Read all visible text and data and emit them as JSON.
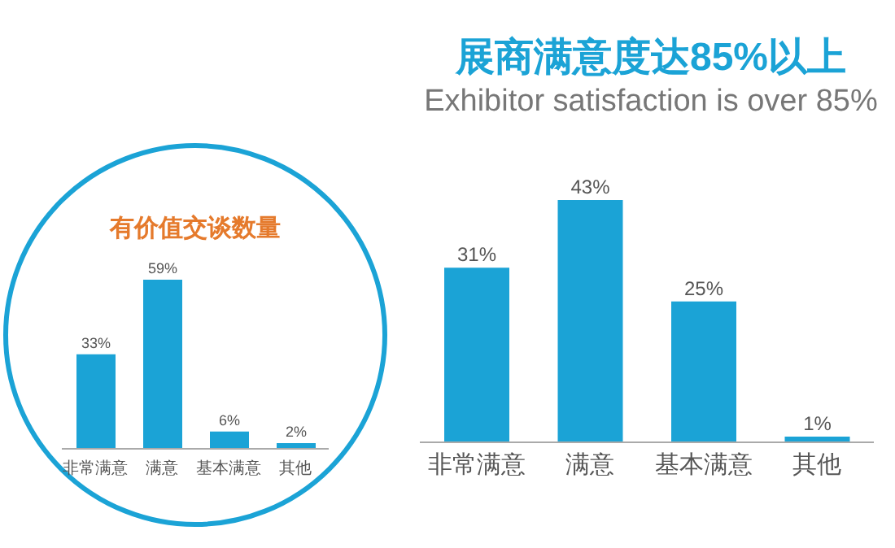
{
  "chart_data": [
    {
      "type": "bar",
      "title": "有价值交谈数量",
      "categories": [
        "非常满意",
        "满意",
        "基本满意",
        "其他"
      ],
      "values": [
        33,
        59,
        6,
        2
      ],
      "value_labels": [
        "33%",
        "59%",
        "6%",
        "2%"
      ],
      "color": "#1ba3d6"
    },
    {
      "type": "bar",
      "title": "展商满意度达85%以上",
      "subtitle": "Exhibitor satisfaction is over 85%",
      "categories": [
        "非常满意",
        "满意",
        "基本满意",
        "其他"
      ],
      "values": [
        31,
        43,
        25,
        1
      ],
      "value_labels": [
        "31%",
        "43%",
        "25%",
        "1%"
      ],
      "color": "#1ba3d6"
    }
  ]
}
